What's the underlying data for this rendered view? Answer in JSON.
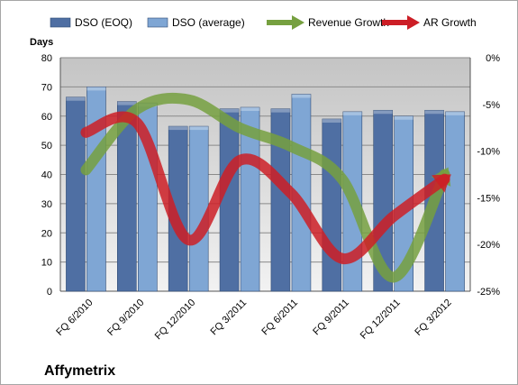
{
  "chart_data": {
    "type": "bar",
    "company": "Affymetrix",
    "ylabel": "Days",
    "ylim": [
      0,
      80
    ],
    "y_ticks": [
      0,
      10,
      20,
      30,
      40,
      50,
      60,
      70,
      80
    ],
    "y2lim": [
      -25,
      0
    ],
    "y2_ticks": [
      0,
      -5,
      -10,
      -15,
      -20,
      -25
    ],
    "y2_tick_labels": [
      "0%",
      "-5%",
      "-10%",
      "-15%",
      "-20%",
      "-25%"
    ],
    "grid": true,
    "legend_position": "top",
    "categories": [
      "FQ 6/2010",
      "FQ 9/2010",
      "FQ 12/2010",
      "FQ 3/2011",
      "FQ 6/2011",
      "FQ 9/2011",
      "FQ 12/2011",
      "FQ 3/2012"
    ],
    "series": [
      {
        "name": "DSO (EOQ)",
        "type": "bar",
        "axis": "left",
        "color": "#4f6fa3",
        "values": [
          66.5,
          65,
          56.5,
          62.5,
          62.5,
          59,
          62,
          62
        ]
      },
      {
        "name": "DSO (average)",
        "type": "bar",
        "axis": "left",
        "color": "#7fa6d4",
        "values": [
          70,
          64.5,
          56.5,
          63,
          67.5,
          61.5,
          60,
          61.5
        ]
      },
      {
        "name": "Revenue Growth",
        "type": "line",
        "axis": "right",
        "color": "#76a040",
        "values": [
          -12,
          -5.5,
          -4.5,
          -7.5,
          -9.5,
          -13,
          -23.5,
          -12.5
        ]
      },
      {
        "name": "AR Growth",
        "type": "line",
        "axis": "right",
        "color": "#cc1e26",
        "values": [
          -8,
          -7,
          -19.5,
          -11,
          -14.5,
          -21.5,
          -17,
          -13
        ]
      }
    ]
  }
}
